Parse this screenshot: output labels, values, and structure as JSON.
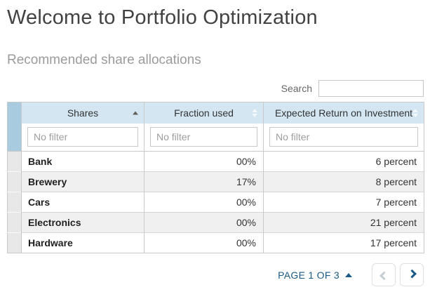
{
  "page": {
    "title": "Welcome to Portfolio Optimization",
    "subtitle": "Recommended share allocations"
  },
  "search": {
    "label": "Search",
    "value": "",
    "placeholder": ""
  },
  "table": {
    "columns": [
      {
        "label": "Shares",
        "sort": "asc"
      },
      {
        "label": "Fraction used",
        "sort": "none"
      },
      {
        "label": "Expected Return on Investment",
        "sort": "none"
      }
    ],
    "filter_placeholder": "No filter",
    "rows": [
      {
        "share": "Bank",
        "fraction": "00%",
        "expected_return": "6 percent"
      },
      {
        "share": "Brewery",
        "fraction": "17%",
        "expected_return": "8 percent"
      },
      {
        "share": "Cars",
        "fraction": "00%",
        "expected_return": "7 percent"
      },
      {
        "share": "Electronics",
        "fraction": "00%",
        "expected_return": "21 percent"
      },
      {
        "share": "Hardware",
        "fraction": "00%",
        "expected_return": "17 percent"
      }
    ]
  },
  "pagination": {
    "label": "PAGE 1 OF 3",
    "prev_enabled": false,
    "next_enabled": true
  },
  "icons": {
    "sort_asc_icon": "▲",
    "sort_both_icon": "⬍",
    "page_menu_icon": "▲",
    "prev_icon": "‹",
    "next_icon": "›"
  },
  "colors": {
    "header_bg": "#d3e6f2",
    "gutter_bg": "#a9cbe0",
    "row_alt_bg": "#f0f0f0",
    "accent_blue": "#1b5a87",
    "disabled_chevron": "#c5ced4"
  }
}
